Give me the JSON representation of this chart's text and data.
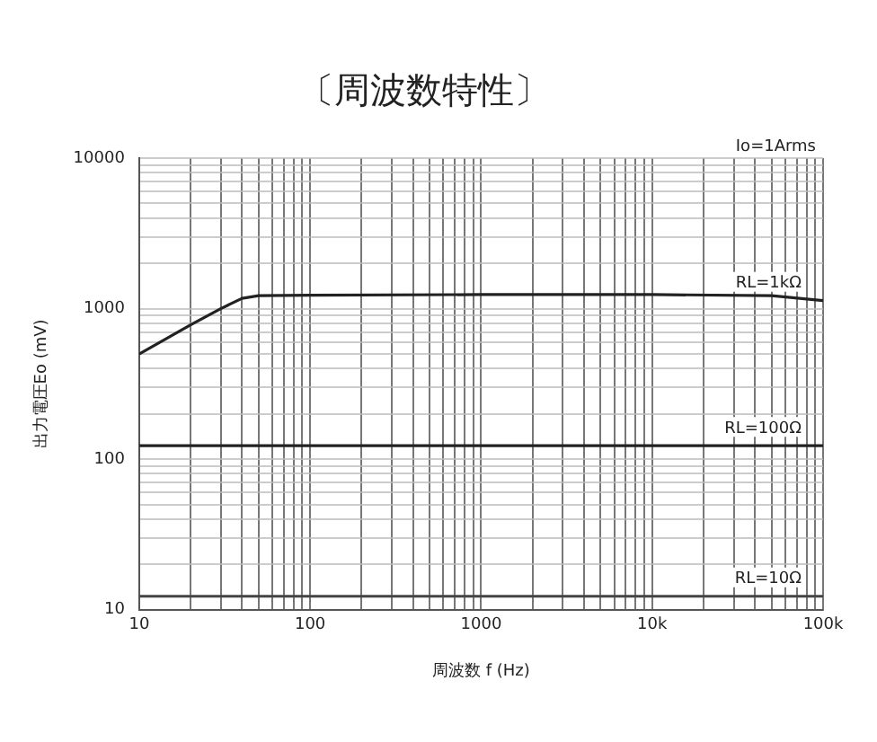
{
  "chart_data": {
    "type": "line",
    "title": "〔周波数特性〕",
    "xlabel": "周波数 f (Hz)",
    "ylabel": "出力電圧Eo (mV)",
    "annotations": [
      "Io=1Arms"
    ],
    "log": "xy",
    "grid": true,
    "legend": false,
    "marker": "none",
    "line_style": "solid",
    "xlim": [
      10,
      100000
    ],
    "ylim": [
      10,
      10000
    ],
    "xticks": [
      10,
      {
        "value": 20,
        "label": null
      },
      {
        "value": 30,
        "label": null
      },
      {
        "value": 40,
        "label": null
      },
      {
        "value": 50,
        "label": null
      },
      {
        "value": 60,
        "label": null
      },
      {
        "value": 70,
        "label": null
      },
      {
        "value": 80,
        "label": null
      },
      {
        "value": 90,
        "label": null
      },
      100,
      {
        "value": 200,
        "label": null
      },
      {
        "value": 300,
        "label": null
      },
      {
        "value": 400,
        "label": null
      },
      {
        "value": 500,
        "label": null
      },
      {
        "value": 600,
        "label": null
      },
      {
        "value": 700,
        "label": null
      },
      {
        "value": 800,
        "label": null
      },
      {
        "value": 900,
        "label": null
      },
      1000,
      {
        "value": 2000,
        "label": null
      },
      {
        "value": 3000,
        "label": null
      },
      {
        "value": 4000,
        "label": null
      },
      {
        "value": 5000,
        "label": null
      },
      {
        "value": 6000,
        "label": null
      },
      {
        "value": 7000,
        "label": null
      },
      {
        "value": 8000,
        "label": null
      },
      {
        "value": 9000,
        "label": null
      },
      {
        "value": 10000,
        "label": "10k"
      },
      {
        "value": 20000,
        "label": null
      },
      {
        "value": 30000,
        "label": null
      },
      {
        "value": 40000,
        "label": null
      },
      {
        "value": 50000,
        "label": null
      },
      {
        "value": 60000,
        "label": null
      },
      {
        "value": 70000,
        "label": null
      },
      {
        "value": 80000,
        "label": null
      },
      {
        "value": 90000,
        "label": null
      },
      {
        "value": 100000,
        "label": "100k"
      }
    ],
    "yticks": [
      10,
      {
        "value": 20,
        "label": null
      },
      {
        "value": 30,
        "label": null
      },
      {
        "value": 40,
        "label": null
      },
      {
        "value": 50,
        "label": null
      },
      {
        "value": 60,
        "label": null
      },
      {
        "value": 70,
        "label": null
      },
      {
        "value": 80,
        "label": null
      },
      {
        "value": 90,
        "label": null
      },
      100,
      {
        "value": 200,
        "label": null
      },
      {
        "value": 300,
        "label": null
      },
      {
        "value": 400,
        "label": null
      },
      {
        "value": 500,
        "label": null
      },
      {
        "value": 600,
        "label": null
      },
      {
        "value": 700,
        "label": null
      },
      {
        "value": 800,
        "label": null
      },
      {
        "value": 900,
        "label": null
      },
      1000,
      {
        "value": 2000,
        "label": null
      },
      {
        "value": 3000,
        "label": null
      },
      {
        "value": 4000,
        "label": null
      },
      {
        "value": 5000,
        "label": null
      },
      {
        "value": 6000,
        "label": null
      },
      {
        "value": 7000,
        "label": null
      },
      {
        "value": 8000,
        "label": null
      },
      {
        "value": 9000,
        "label": null
      },
      10000
    ],
    "series": [
      {
        "name": "RL=1kΩ",
        "color": "#222222",
        "x": [
          10,
          20,
          30,
          40,
          50,
          100,
          1000,
          10000,
          50000,
          100000
        ],
        "values": [
          500,
          780,
          1000,
          1170,
          1220,
          1230,
          1240,
          1240,
          1220,
          1130
        ]
      },
      {
        "name": "RL=100Ω",
        "color": "#222222",
        "x": [
          10,
          100000
        ],
        "values": [
          123,
          123
        ]
      },
      {
        "name": "RL=10Ω",
        "color": "#444444",
        "x": [
          10,
          100000
        ],
        "values": [
          12.3,
          12.3
        ]
      }
    ]
  }
}
